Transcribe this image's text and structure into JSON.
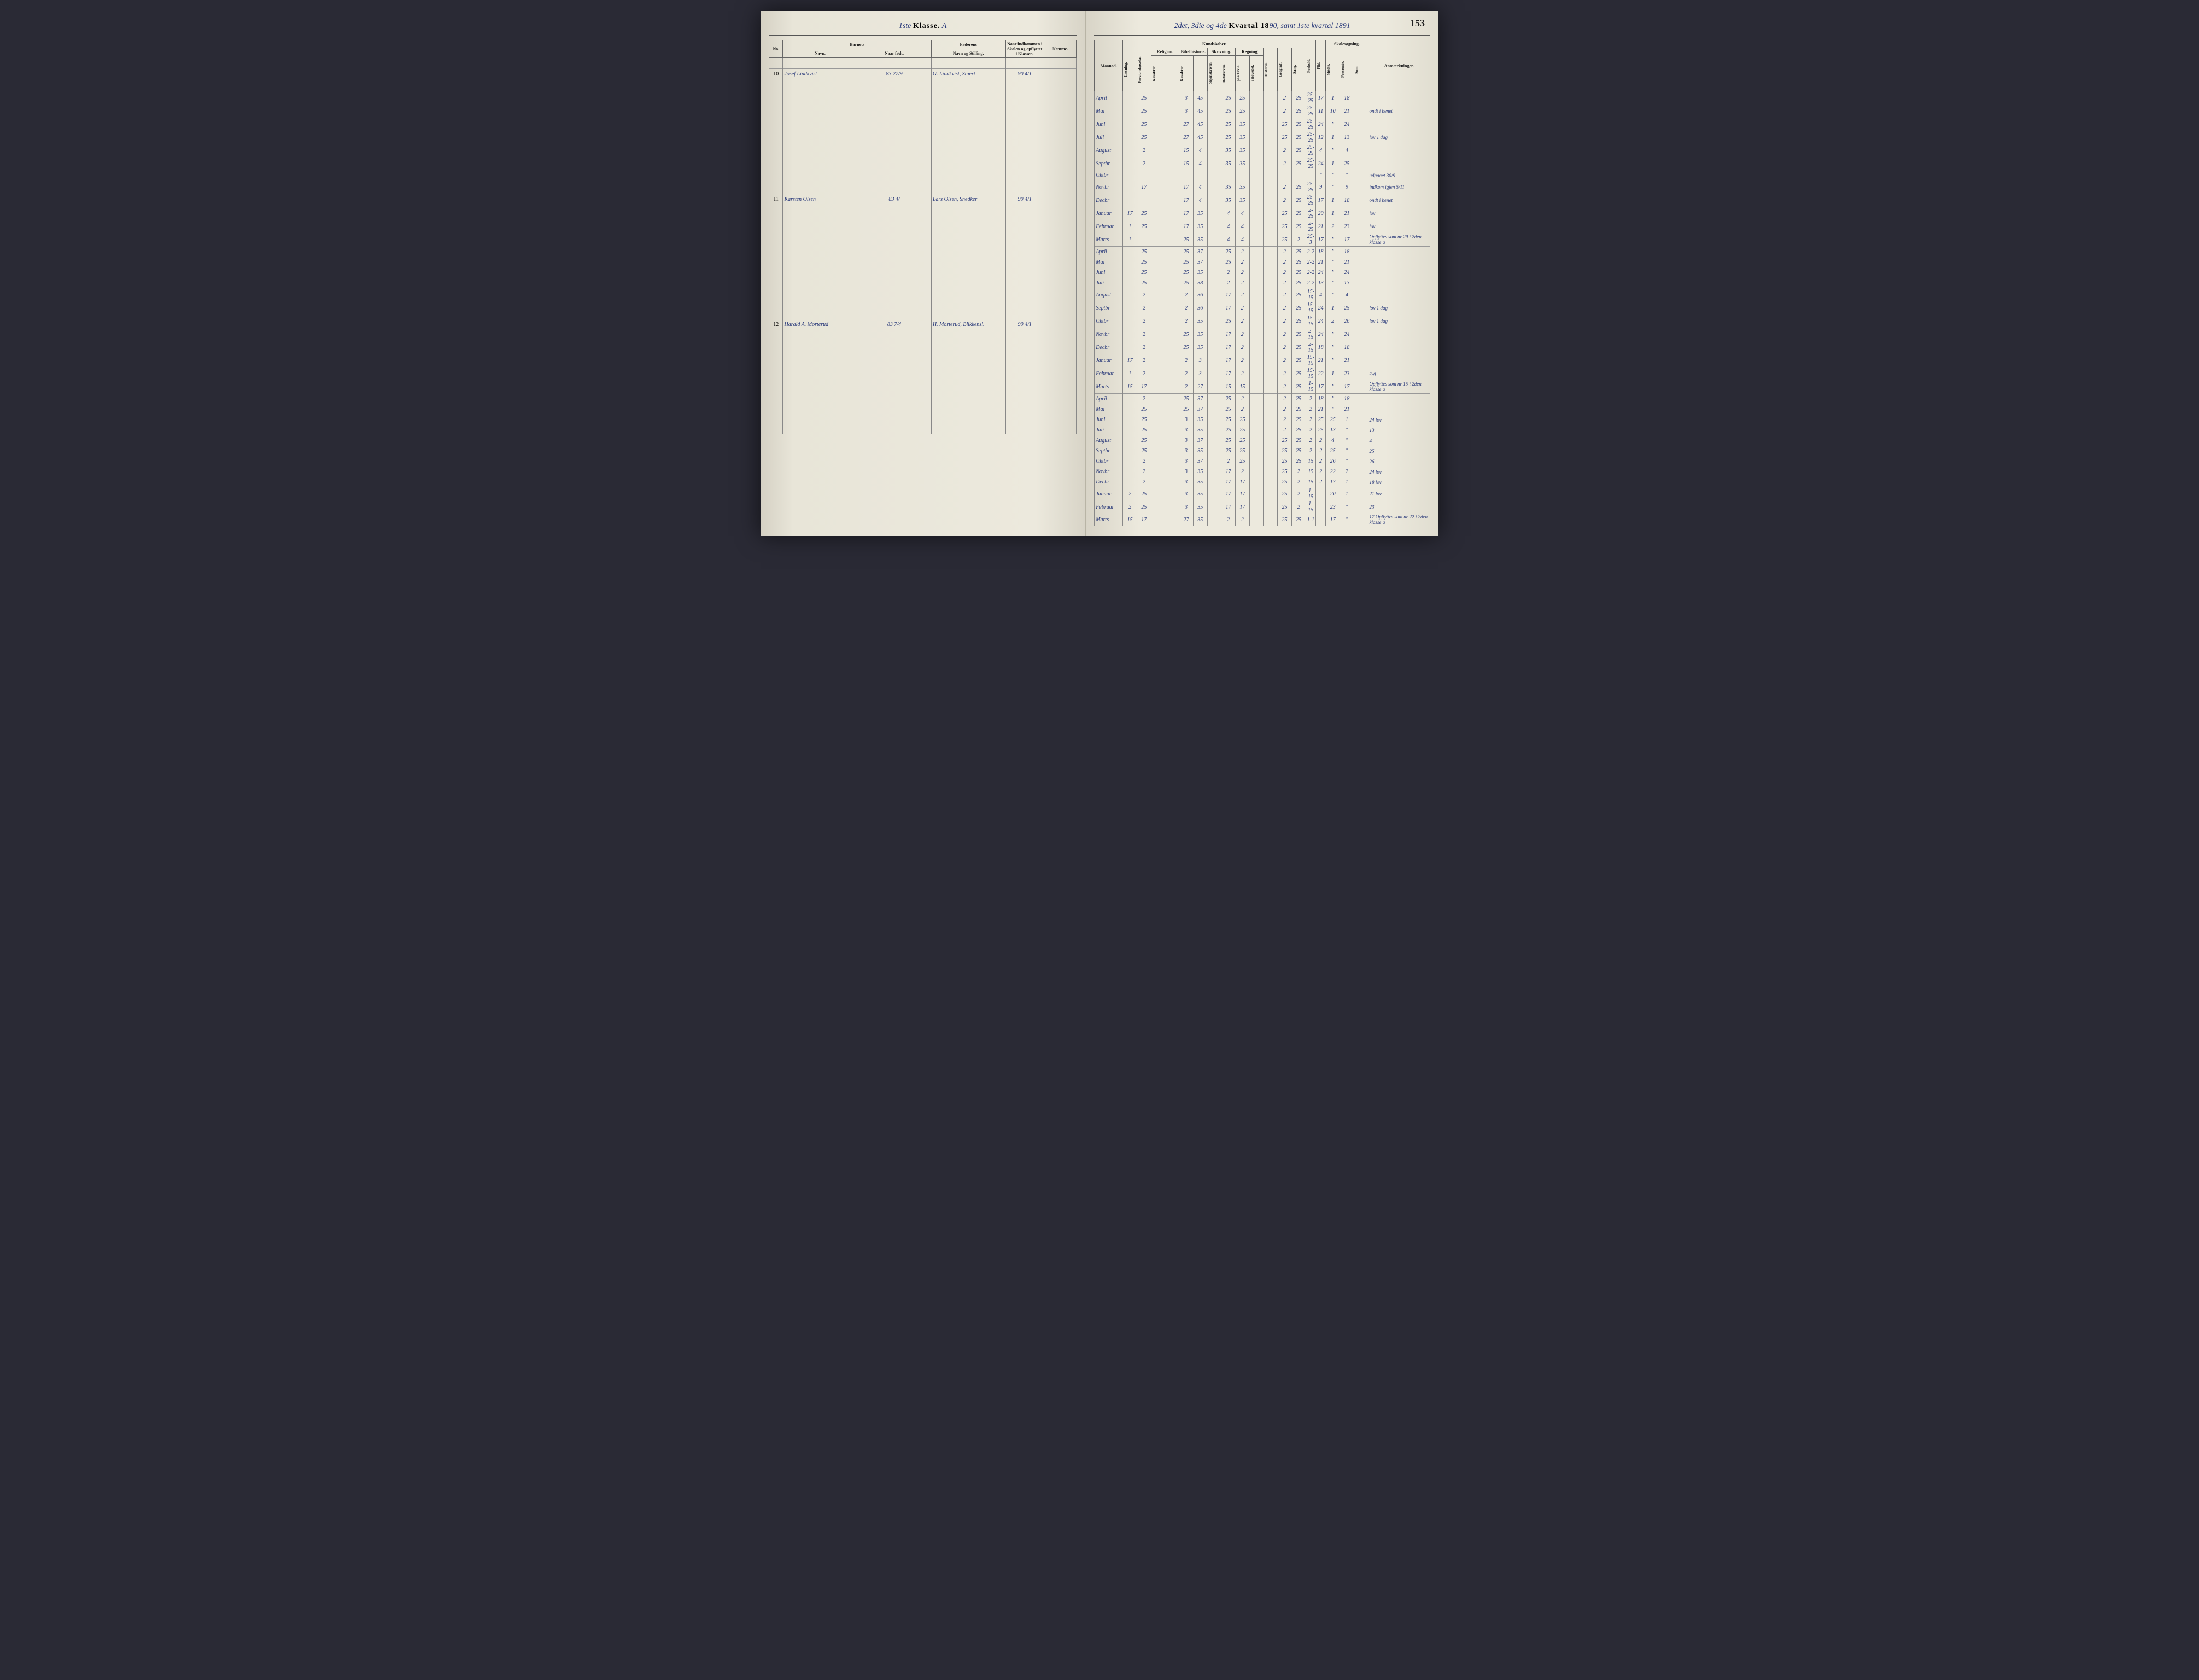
{
  "page_number": "153",
  "left_header": {
    "klasse_ord": "1ste",
    "klasse_label": "Klasse.",
    "klasse_letter": "A"
  },
  "right_header": {
    "prefix": "2det, 3die og 4de",
    "kvartal_label": "Kvartal 18",
    "year_suffix": "90, samt 1ste kvartal 1891"
  },
  "columns_left": {
    "barnets": "Barnets",
    "no": "No.",
    "navn": "Navn.",
    "naar_fodt": "Naar født.",
    "faderens": "Faderens",
    "navn_stilling": "Navn og Stilling.",
    "naar_indkom": "Naar indkommen i Skolen og opflyttet i Klassen.",
    "nemme": "Nemme.",
    "maaned": "Maaned."
  },
  "columns_right": {
    "kundskaber": "Kundskaber.",
    "skolesog": "Skolesøgning.",
    "laesning": "Læsning.",
    "forst": "Forstandsøvelse.",
    "religion": "Religion.",
    "bibelhistorie": "Bibelhistorie.",
    "skrivning": "Skrivning.",
    "regning": "Regning",
    "karakter": "Karakter.",
    "skjon": "Skjønskriven",
    "retskr": "Retskriven.",
    "tavle": "paa Tavle.",
    "hovedr": "i Hovedet.",
    "historie": "Historie.",
    "geografi": "Geografi.",
    "sang": "Sang.",
    "forhold": "Forhold.",
    "flid": "Flid.",
    "modte": "Mødte.",
    "forsomte": "Forsømte.",
    "sum": "Sum.",
    "anm": "Anmærkninger."
  },
  "students": [
    {
      "no": "10",
      "navn": "Josef Lindkvist",
      "fodt": "83 27/9",
      "fader": "G. Lindkvist, Stuert",
      "ind": "90 4/1",
      "months": [
        {
          "m": "April",
          "l": "",
          "f": "25",
          "rel": "",
          "bib": "",
          "k1": "3",
          "k2": "45",
          "s1": "",
          "s2": "25",
          "r1": "25",
          "r2": "",
          "h": "",
          "g": "2",
          "sa": "25",
          "fo": "25-25",
          "fl": "17",
          "mo": "1",
          "fs": "18",
          "an": ""
        },
        {
          "m": "Mai",
          "l": "",
          "f": "25",
          "rel": "",
          "bib": "",
          "k1": "3",
          "k2": "45",
          "s1": "",
          "s2": "25",
          "r1": "25",
          "r2": "",
          "h": "",
          "g": "2",
          "sa": "25",
          "fo": "25-25",
          "fl": "11",
          "mo": "10",
          "fs": "21",
          "an": "ondt i benet"
        },
        {
          "m": "Juni",
          "l": "",
          "f": "25",
          "rel": "",
          "bib": "",
          "k1": "27",
          "k2": "45",
          "s1": "",
          "s2": "25",
          "r1": "35",
          "r2": "",
          "h": "",
          "g": "25",
          "sa": "25",
          "fo": "25-25",
          "fl": "24",
          "mo": "\"",
          "fs": "24",
          "an": ""
        },
        {
          "m": "Juli",
          "l": "",
          "f": "25",
          "rel": "",
          "bib": "",
          "k1": "27",
          "k2": "45",
          "s1": "",
          "s2": "25",
          "r1": "35",
          "r2": "",
          "h": "",
          "g": "25",
          "sa": "25",
          "fo": "25-25",
          "fl": "12",
          "mo": "1",
          "fs": "13",
          "an": "lov 1 dag"
        },
        {
          "m": "August",
          "l": "",
          "f": "2",
          "rel": "",
          "bib": "",
          "k1": "15",
          "k2": "4",
          "s1": "",
          "s2": "35",
          "r1": "35",
          "r2": "",
          "h": "",
          "g": "2",
          "sa": "25",
          "fo": "25-25",
          "fl": "4",
          "mo": "\"",
          "fs": "4",
          "an": ""
        },
        {
          "m": "Septbr",
          "l": "",
          "f": "2",
          "rel": "",
          "bib": "",
          "k1": "15",
          "k2": "4",
          "s1": "",
          "s2": "35",
          "r1": "35",
          "r2": "",
          "h": "",
          "g": "2",
          "sa": "25",
          "fo": "25-25",
          "fl": "24",
          "mo": "1",
          "fs": "25",
          "an": ""
        },
        {
          "m": "Oktbr",
          "l": "",
          "f": "",
          "rel": "",
          "bib": "",
          "k1": "",
          "k2": "",
          "s1": "",
          "s2": "",
          "r1": "",
          "r2": "",
          "h": "",
          "g": "",
          "sa": "",
          "fo": "",
          "fl": "\"",
          "mo": "\"",
          "fs": "\"",
          "an": "udgaaet 30/9"
        },
        {
          "m": "Novbr",
          "l": "",
          "f": "17",
          "rel": "",
          "bib": "",
          "k1": "17",
          "k2": "4",
          "s1": "",
          "s2": "35",
          "r1": "35",
          "r2": "",
          "h": "",
          "g": "2",
          "sa": "25",
          "fo": "25-25",
          "fl": "9",
          "mo": "\"",
          "fs": "9",
          "an": "indkom igjen 5/11"
        },
        {
          "m": "Decbr",
          "l": "",
          "f": "",
          "rel": "",
          "bib": "",
          "k1": "17",
          "k2": "4",
          "s1": "",
          "s2": "35",
          "r1": "35",
          "r2": "",
          "h": "",
          "g": "2",
          "sa": "25",
          "fo": "25-25",
          "fl": "17",
          "mo": "1",
          "fs": "18",
          "an": "ondt i benet"
        },
        {
          "m": "Januar",
          "l": "17",
          "f": "25",
          "rel": "",
          "bib": "",
          "k1": "17",
          "k2": "35",
          "s1": "",
          "s2": "4",
          "r1": "4",
          "r2": "",
          "h": "",
          "g": "25",
          "sa": "25",
          "fo": "2-25",
          "fl": "20",
          "mo": "1",
          "fs": "21",
          "an": "lov"
        },
        {
          "m": "Februar",
          "l": "1",
          "f": "25",
          "rel": "",
          "bib": "",
          "k1": "17",
          "k2": "35",
          "s1": "",
          "s2": "4",
          "r1": "4",
          "r2": "",
          "h": "",
          "g": "25",
          "sa": "25",
          "fo": "2-25",
          "fl": "21",
          "mo": "2",
          "fs": "23",
          "an": "lov"
        },
        {
          "m": "Marts",
          "l": "1",
          "f": "",
          "rel": "",
          "bib": "",
          "k1": "25",
          "k2": "35",
          "s1": "",
          "s2": "4",
          "r1": "4",
          "r2": "",
          "h": "",
          "g": "25",
          "sa": "2",
          "fo": "25-3",
          "fl": "17",
          "mo": "\"",
          "fs": "17",
          "an": "Opflyttes som nr 29 i 2den klasse a"
        }
      ]
    },
    {
      "no": "11",
      "navn": "Karsten Olsen",
      "fodt": "83 4/",
      "fader": "Lars Olsen, Snedker",
      "ind": "90 4/1",
      "months": [
        {
          "m": "April",
          "l": "",
          "f": "25",
          "rel": "",
          "bib": "",
          "k1": "25",
          "k2": "37",
          "s1": "",
          "s2": "25",
          "r1": "2",
          "r2": "",
          "h": "",
          "g": "2",
          "sa": "25",
          "fo": "2-2",
          "fl": "18",
          "mo": "\"",
          "fs": "18",
          "an": ""
        },
        {
          "m": "Mai",
          "l": "",
          "f": "25",
          "rel": "",
          "bib": "",
          "k1": "25",
          "k2": "37",
          "s1": "",
          "s2": "25",
          "r1": "2",
          "r2": "",
          "h": "",
          "g": "2",
          "sa": "25",
          "fo": "2-2",
          "fl": "21",
          "mo": "\"",
          "fs": "21",
          "an": ""
        },
        {
          "m": "Juni",
          "l": "",
          "f": "25",
          "rel": "",
          "bib": "",
          "k1": "25",
          "k2": "35",
          "s1": "",
          "s2": "2",
          "r1": "2",
          "r2": "",
          "h": "",
          "g": "2",
          "sa": "25",
          "fo": "2-2",
          "fl": "24",
          "mo": "\"",
          "fs": "24",
          "an": ""
        },
        {
          "m": "Juli",
          "l": "",
          "f": "25",
          "rel": "",
          "bib": "",
          "k1": "25",
          "k2": "38",
          "s1": "",
          "s2": "2",
          "r1": "2",
          "r2": "",
          "h": "",
          "g": "2",
          "sa": "25",
          "fo": "2-2",
          "fl": "13",
          "mo": "\"",
          "fs": "13",
          "an": ""
        },
        {
          "m": "August",
          "l": "",
          "f": "2",
          "rel": "",
          "bib": "",
          "k1": "2",
          "k2": "36",
          "s1": "",
          "s2": "17",
          "r1": "2",
          "r2": "",
          "h": "",
          "g": "2",
          "sa": "25",
          "fo": "15-15",
          "fl": "4",
          "mo": "\"",
          "fs": "4",
          "an": ""
        },
        {
          "m": "Septbr",
          "l": "",
          "f": "2",
          "rel": "",
          "bib": "",
          "k1": "2",
          "k2": "36",
          "s1": "",
          "s2": "17",
          "r1": "2",
          "r2": "",
          "h": "",
          "g": "2",
          "sa": "25",
          "fo": "15-15",
          "fl": "24",
          "mo": "1",
          "fs": "25",
          "an": "lov 1 dag"
        },
        {
          "m": "Oktbr",
          "l": "",
          "f": "2",
          "rel": "",
          "bib": "",
          "k1": "2",
          "k2": "35",
          "s1": "",
          "s2": "25",
          "r1": "2",
          "r2": "",
          "h": "",
          "g": "2",
          "sa": "25",
          "fo": "15-15",
          "fl": "24",
          "mo": "2",
          "fs": "26",
          "an": "lov 1 dag"
        },
        {
          "m": "Novbr",
          "l": "",
          "f": "2",
          "rel": "",
          "bib": "",
          "k1": "25",
          "k2": "35",
          "s1": "",
          "s2": "17",
          "r1": "2",
          "r2": "",
          "h": "",
          "g": "2",
          "sa": "25",
          "fo": "2-15",
          "fl": "24",
          "mo": "\"",
          "fs": "24",
          "an": ""
        },
        {
          "m": "Decbr",
          "l": "",
          "f": "2",
          "rel": "",
          "bib": "",
          "k1": "25",
          "k2": "35",
          "s1": "",
          "s2": "17",
          "r1": "2",
          "r2": "",
          "h": "",
          "g": "2",
          "sa": "25",
          "fo": "2-15",
          "fl": "18",
          "mo": "\"",
          "fs": "18",
          "an": ""
        },
        {
          "m": "Januar",
          "l": "17",
          "f": "2",
          "rel": "",
          "bib": "",
          "k1": "2",
          "k2": "3",
          "s1": "",
          "s2": "17",
          "r1": "2",
          "r2": "",
          "h": "",
          "g": "2",
          "sa": "25",
          "fo": "15-15",
          "fl": "21",
          "mo": "\"",
          "fs": "21",
          "an": ""
        },
        {
          "m": "Februar",
          "l": "1",
          "f": "2",
          "rel": "",
          "bib": "",
          "k1": "2",
          "k2": "3",
          "s1": "",
          "s2": "17",
          "r1": "2",
          "r2": "",
          "h": "",
          "g": "2",
          "sa": "25",
          "fo": "15-15",
          "fl": "22",
          "mo": "1",
          "fs": "23",
          "an": "syg"
        },
        {
          "m": "Marts",
          "l": "15",
          "f": "17",
          "rel": "",
          "bib": "",
          "k1": "2",
          "k2": "27",
          "s1": "",
          "s2": "15",
          "r1": "15",
          "r2": "",
          "h": "",
          "g": "2",
          "sa": "25",
          "fo": "1-15",
          "fl": "17",
          "mo": "\"",
          "fs": "17",
          "an": "Opflyttes som nr 15 i 2den klasse a"
        }
      ]
    },
    {
      "no": "12",
      "navn": "Harald A. Morterud",
      "fodt": "83 7/4",
      "fader": "H. Morterud, Blikkensl.",
      "ind": "90 4/1",
      "months": [
        {
          "m": "April",
          "l": "",
          "f": "2",
          "rel": "",
          "bib": "",
          "k1": "25",
          "k2": "37",
          "s1": "",
          "s2": "25",
          "r1": "2",
          "r2": "",
          "h": "",
          "g": "2",
          "sa": "25",
          "fo": "2",
          "fl": "18",
          "mo": "\"",
          "fs": "18",
          "an": ""
        },
        {
          "m": "Mai",
          "l": "",
          "f": "25",
          "rel": "",
          "bib": "",
          "k1": "25",
          "k2": "37",
          "s1": "",
          "s2": "25",
          "r1": "2",
          "r2": "",
          "h": "",
          "g": "2",
          "sa": "25",
          "fo": "2",
          "fl": "21",
          "mo": "\"",
          "fs": "21",
          "an": ""
        },
        {
          "m": "Juni",
          "l": "",
          "f": "25",
          "rel": "",
          "bib": "",
          "k1": "3",
          "k2": "35",
          "s1": "",
          "s2": "25",
          "r1": "25",
          "r2": "",
          "h": "",
          "g": "2",
          "sa": "25",
          "fo": "2",
          "fl": "25",
          "mo": "25",
          "fs": "1",
          "an": "24 lov"
        },
        {
          "m": "Juli",
          "l": "",
          "f": "25",
          "rel": "",
          "bib": "",
          "k1": "3",
          "k2": "35",
          "s1": "",
          "s2": "25",
          "r1": "25",
          "r2": "",
          "h": "",
          "g": "2",
          "sa": "25",
          "fo": "2",
          "fl": "25",
          "mo": "13",
          "fs": "\"",
          "an": "13"
        },
        {
          "m": "August",
          "l": "",
          "f": "25",
          "rel": "",
          "bib": "",
          "k1": "3",
          "k2": "37",
          "s1": "",
          "s2": "25",
          "r1": "25",
          "r2": "",
          "h": "",
          "g": "25",
          "sa": "25",
          "fo": "2",
          "fl": "2",
          "mo": "4",
          "fs": "\"",
          "an": "4"
        },
        {
          "m": "Septbr",
          "l": "",
          "f": "25",
          "rel": "",
          "bib": "",
          "k1": "3",
          "k2": "35",
          "s1": "",
          "s2": "25",
          "r1": "25",
          "r2": "",
          "h": "",
          "g": "25",
          "sa": "25",
          "fo": "2",
          "fl": "2",
          "mo": "25",
          "fs": "\"",
          "an": "25"
        },
        {
          "m": "Oktbr",
          "l": "",
          "f": "2",
          "rel": "",
          "bib": "",
          "k1": "3",
          "k2": "37",
          "s1": "",
          "s2": "2",
          "r1": "25",
          "r2": "",
          "h": "",
          "g": "25",
          "sa": "25",
          "fo": "15",
          "fl": "2",
          "mo": "26",
          "fs": "\"",
          "an": "26"
        },
        {
          "m": "Novbr",
          "l": "",
          "f": "2",
          "rel": "",
          "bib": "",
          "k1": "3",
          "k2": "35",
          "s1": "",
          "s2": "17",
          "r1": "2",
          "r2": "",
          "h": "",
          "g": "25",
          "sa": "2",
          "fo": "15",
          "fl": "2",
          "mo": "22",
          "fs": "2",
          "an": "24 lov"
        },
        {
          "m": "Decbr",
          "l": "",
          "f": "2",
          "rel": "",
          "bib": "",
          "k1": "3",
          "k2": "35",
          "s1": "",
          "s2": "17",
          "r1": "17",
          "r2": "",
          "h": "",
          "g": "25",
          "sa": "2",
          "fo": "15",
          "fl": "2",
          "mo": "17",
          "fs": "1",
          "an": "18 lov"
        },
        {
          "m": "Januar",
          "l": "2",
          "f": "25",
          "rel": "",
          "bib": "",
          "k1": "3",
          "k2": "35",
          "s1": "",
          "s2": "17",
          "r1": "17",
          "r2": "",
          "h": "",
          "g": "25",
          "sa": "2",
          "fo": "1-15",
          "fl": "",
          "mo": "20",
          "fs": "1",
          "an": "21 lov"
        },
        {
          "m": "Februar",
          "l": "2",
          "f": "25",
          "rel": "",
          "bib": "",
          "k1": "3",
          "k2": "35",
          "s1": "",
          "s2": "17",
          "r1": "17",
          "r2": "",
          "h": "",
          "g": "25",
          "sa": "2",
          "fo": "1-15",
          "fl": "",
          "mo": "23",
          "fs": "\"",
          "an": "23"
        },
        {
          "m": "Marts",
          "l": "15",
          "f": "17",
          "rel": "",
          "bib": "",
          "k1": "27",
          "k2": "35",
          "s1": "",
          "s2": "2",
          "r1": "2",
          "r2": "",
          "h": "",
          "g": "25",
          "sa": "25",
          "fo": "1-1",
          "fl": "",
          "mo": "17",
          "fs": "\"",
          "an": "17 Opflyttes som nr 22 i 2den klasse a"
        }
      ]
    }
  ]
}
